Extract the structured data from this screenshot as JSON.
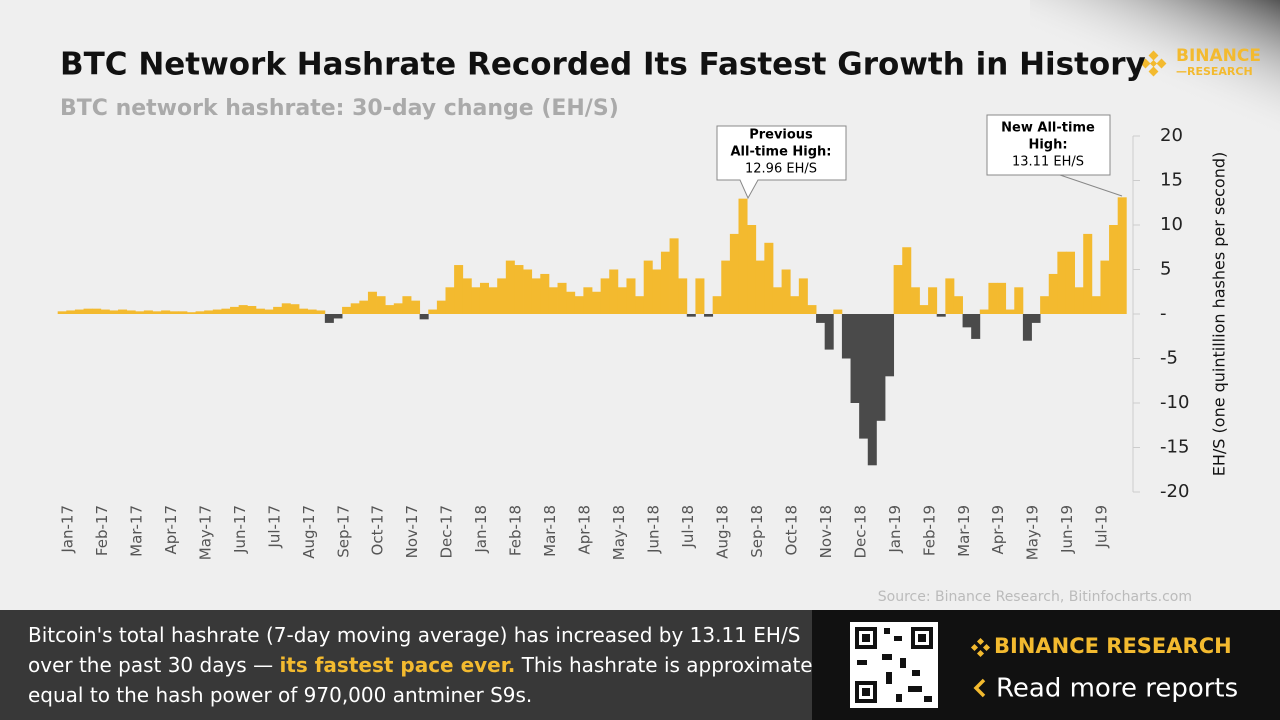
{
  "chart_data": {
    "type": "bar",
    "title": "BTC Network Hashrate Recorded Its Fastest Growth in History",
    "subtitle": "BTC network hashrate: 30-day change (EH/S)",
    "y_axis_label": "EH/S (one quintillion hashes per second)",
    "source": "Source: Binance Research, Bitinfocharts.com",
    "color": "#f3ba2f",
    "negative_color": "#4a4a4a",
    "ylim": [
      -20,
      20
    ],
    "yticks": [
      20,
      15,
      10,
      5,
      {
        "value": 0,
        "label": "-"
      },
      -5,
      -10,
      -15,
      -20
    ],
    "categories": [
      "Jan-17",
      null,
      null,
      null,
      "Feb-17",
      null,
      null,
      null,
      "Mar-17",
      null,
      null,
      null,
      "Apr-17",
      null,
      null,
      null,
      "May-17",
      null,
      null,
      null,
      "Jun-17",
      null,
      null,
      null,
      "Jul-17",
      null,
      null,
      null,
      "Aug-17",
      null,
      null,
      null,
      "Sep-17",
      null,
      null,
      null,
      "Oct-17",
      null,
      null,
      null,
      "Nov-17",
      null,
      null,
      null,
      "Dec-17",
      null,
      null,
      null,
      "Jan-18",
      null,
      null,
      null,
      "Feb-18",
      null,
      null,
      null,
      "Mar-18",
      null,
      null,
      null,
      "Apr-18",
      null,
      null,
      null,
      "May-18",
      null,
      null,
      null,
      "Jun-18",
      null,
      null,
      null,
      "Jul-18",
      null,
      null,
      null,
      "Aug-18",
      null,
      null,
      null,
      "Sep-18",
      null,
      null,
      null,
      "Oct-18",
      null,
      null,
      null,
      "Nov-18",
      null,
      null,
      null,
      "Dec-18",
      null,
      null,
      null,
      "Jan-19",
      null,
      null,
      null,
      "Feb-19",
      null,
      null,
      null,
      "Mar-19",
      null,
      null,
      null,
      "Apr-19",
      null,
      null,
      null,
      "May-19",
      null,
      null,
      null,
      "Jun-19",
      null,
      null,
      null,
      "Jul-19",
      null,
      null,
      null
    ],
    "values": [
      0.3,
      0.4,
      0.5,
      0.6,
      0.6,
      0.5,
      0.4,
      0.5,
      0.4,
      0.3,
      0.4,
      0.3,
      0.4,
      0.3,
      0.3,
      0.2,
      0.3,
      0.4,
      0.5,
      0.6,
      0.8,
      1.0,
      0.9,
      0.6,
      0.5,
      0.8,
      1.2,
      1.1,
      0.6,
      0.5,
      0.4,
      -1.0,
      -0.5,
      0.8,
      1.2,
      1.5,
      2.5,
      2.0,
      1.0,
      1.2,
      2.0,
      1.5,
      -0.6,
      0.5,
      1.5,
      3.0,
      5.5,
      4.0,
      3.0,
      3.5,
      3.0,
      4.0,
      6.0,
      5.5,
      5.0,
      4.0,
      4.5,
      3.0,
      3.5,
      2.5,
      2.0,
      3.0,
      2.5,
      4.0,
      5.0,
      3.0,
      4.0,
      2.0,
      6.0,
      5.0,
      7.0,
      8.5,
      4.0,
      -0.3,
      4.0,
      -0.3,
      2.0,
      6.0,
      9.0,
      12.96,
      10.0,
      6.0,
      8.0,
      3.0,
      5.0,
      2.0,
      4.0,
      1.0,
      -1.0,
      -4.0,
      0.5,
      -5.0,
      -10,
      -14,
      -17,
      -12,
      -7,
      5.5,
      7.5,
      3.0,
      1.0,
      3.0,
      -0.3,
      4.0,
      2.0,
      -1.5,
      -2.8,
      0.5,
      3.5,
      3.5,
      0.5,
      3.0,
      -3.0,
      -1.0,
      2.0,
      4.5,
      7.0,
      7.0,
      3.0,
      9.0,
      2.0,
      6.0,
      10.0,
      13.11
    ],
    "annotations": [
      {
        "lines": [
          "Previous",
          "All-time High:"
        ],
        "value_text": "12.96 EH/S"
      },
      {
        "lines": [
          "New All-time",
          "High:"
        ],
        "value_text": "13.11 EH/S"
      }
    ]
  },
  "logo": {
    "name": "BINANCE",
    "sub": "—RESEARCH"
  },
  "footer": {
    "line1": "Bitcoin's total hashrate (7-day moving average) has increased by 13.11 EH/S",
    "line2_before": "over the past 30 days — ",
    "highlight": "its fastest pace ever.",
    "line2_after": " This hashrate is approximately",
    "line3": "equal to the hash power of 970,000 antminer S9s.",
    "brand": "BINANCE RESEARCH",
    "cta": "Read more reports"
  }
}
